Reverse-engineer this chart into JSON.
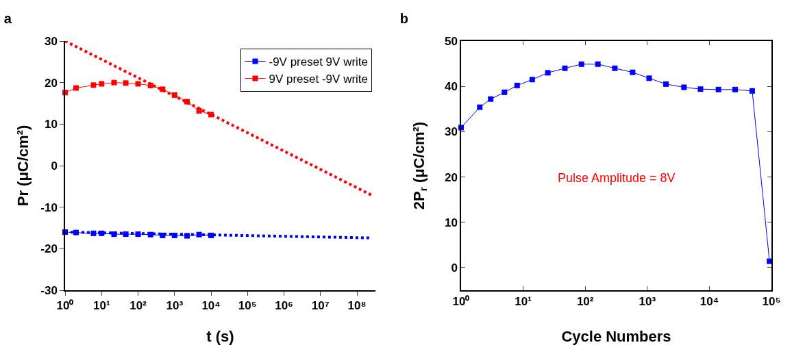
{
  "chart_data": [
    {
      "type": "line",
      "title": "a",
      "xlabel": "t (s)",
      "ylabel": "Pr (μC/cm²)",
      "log": "x",
      "xlim": [
        1,
        320000000
      ],
      "xticks": [
        {
          "value": 1,
          "label": "10⁰"
        },
        {
          "value": 10,
          "label": "10¹"
        },
        {
          "value": 100,
          "label": "10²"
        },
        {
          "value": 1000,
          "label": "10³"
        },
        {
          "value": 10000,
          "label": "10⁴"
        },
        {
          "value": 100000,
          "label": "10⁵"
        },
        {
          "value": 1000000,
          "label": "10⁶"
        },
        {
          "value": 10000000,
          "label": "10⁷"
        },
        {
          "value": 100000000,
          "label": "10⁸"
        }
      ],
      "ylim": [
        -30,
        30
      ],
      "yticks": [
        -30,
        -20,
        -10,
        0,
        10,
        20,
        30
      ],
      "grid": false,
      "legend": "top right",
      "marker": "square",
      "line_style": "solid",
      "series": [
        {
          "name": "-9V preset 9V write",
          "color": "#0000ff",
          "x": [
            1,
            2,
            6,
            10,
            22,
            46,
            100,
            220,
            470,
            1000,
            2200,
            4700,
            10000
          ],
          "values": [
            -16.0,
            -16.1,
            -16.3,
            -16.3,
            -16.5,
            -16.5,
            -16.5,
            -16.6,
            -16.8,
            -16.8,
            -16.9,
            -16.6,
            -16.8
          ]
        },
        {
          "name": "9V preset -9V write",
          "color": "#ff0000",
          "x": [
            1,
            2,
            6,
            10,
            22,
            46,
            100,
            220,
            470,
            1000,
            2200,
            4700,
            10000
          ],
          "values": [
            17.6,
            18.7,
            19.4,
            19.7,
            20.0,
            19.9,
            19.7,
            19.3,
            18.4,
            17.0,
            15.4,
            13.2,
            12.3
          ]
        },
        {
          "color": "#0000ff",
          "marker": "none",
          "line_style": "dotted",
          "x": [
            1,
            230000000
          ],
          "values": [
            -16.0,
            -17.4
          ]
        },
        {
          "color": "#ff0000",
          "marker": "none",
          "line_style": "dotted",
          "x": [
            1,
            280000000
          ],
          "values": [
            30.0,
            -7.3
          ]
        }
      ]
    },
    {
      "type": "line",
      "title": "b",
      "xlabel": "Cycle Numbers",
      "ylabel": "2P$_{r}$ (μC/cm²)",
      "log": "x",
      "xlim": [
        1,
        100000
      ],
      "xticks": [
        {
          "value": 1,
          "label": "10⁰"
        },
        {
          "value": 10,
          "label": "10¹"
        },
        {
          "value": 100,
          "label": "10²"
        },
        {
          "value": 1000,
          "label": "10³"
        },
        {
          "value": 10000,
          "label": "10⁴"
        },
        {
          "value": 100000,
          "label": "10⁵"
        }
      ],
      "ylim": [
        -5,
        50
      ],
      "yticks": [
        0,
        10,
        20,
        30,
        40,
        50
      ],
      "grid": false,
      "legend": false,
      "marker": "square",
      "line_style": "solid",
      "annotations": [
        "Pulse Amplitude = 8V"
      ],
      "series": [
        {
          "color": "#0000ff",
          "x": [
            1,
            2,
            3,
            5,
            8,
            14,
            25,
            47,
            87,
            160,
            300,
            580,
            1070,
            2000,
            3900,
            7200,
            14000,
            26000,
            49000,
            93000
          ],
          "values": [
            30.9,
            35.4,
            37.2,
            38.7,
            40.2,
            41.5,
            43.0,
            44.0,
            44.9,
            44.9,
            44.0,
            43.1,
            41.8,
            40.5,
            39.8,
            39.4,
            39.3,
            39.3,
            39.0,
            1.4
          ]
        }
      ]
    }
  ]
}
